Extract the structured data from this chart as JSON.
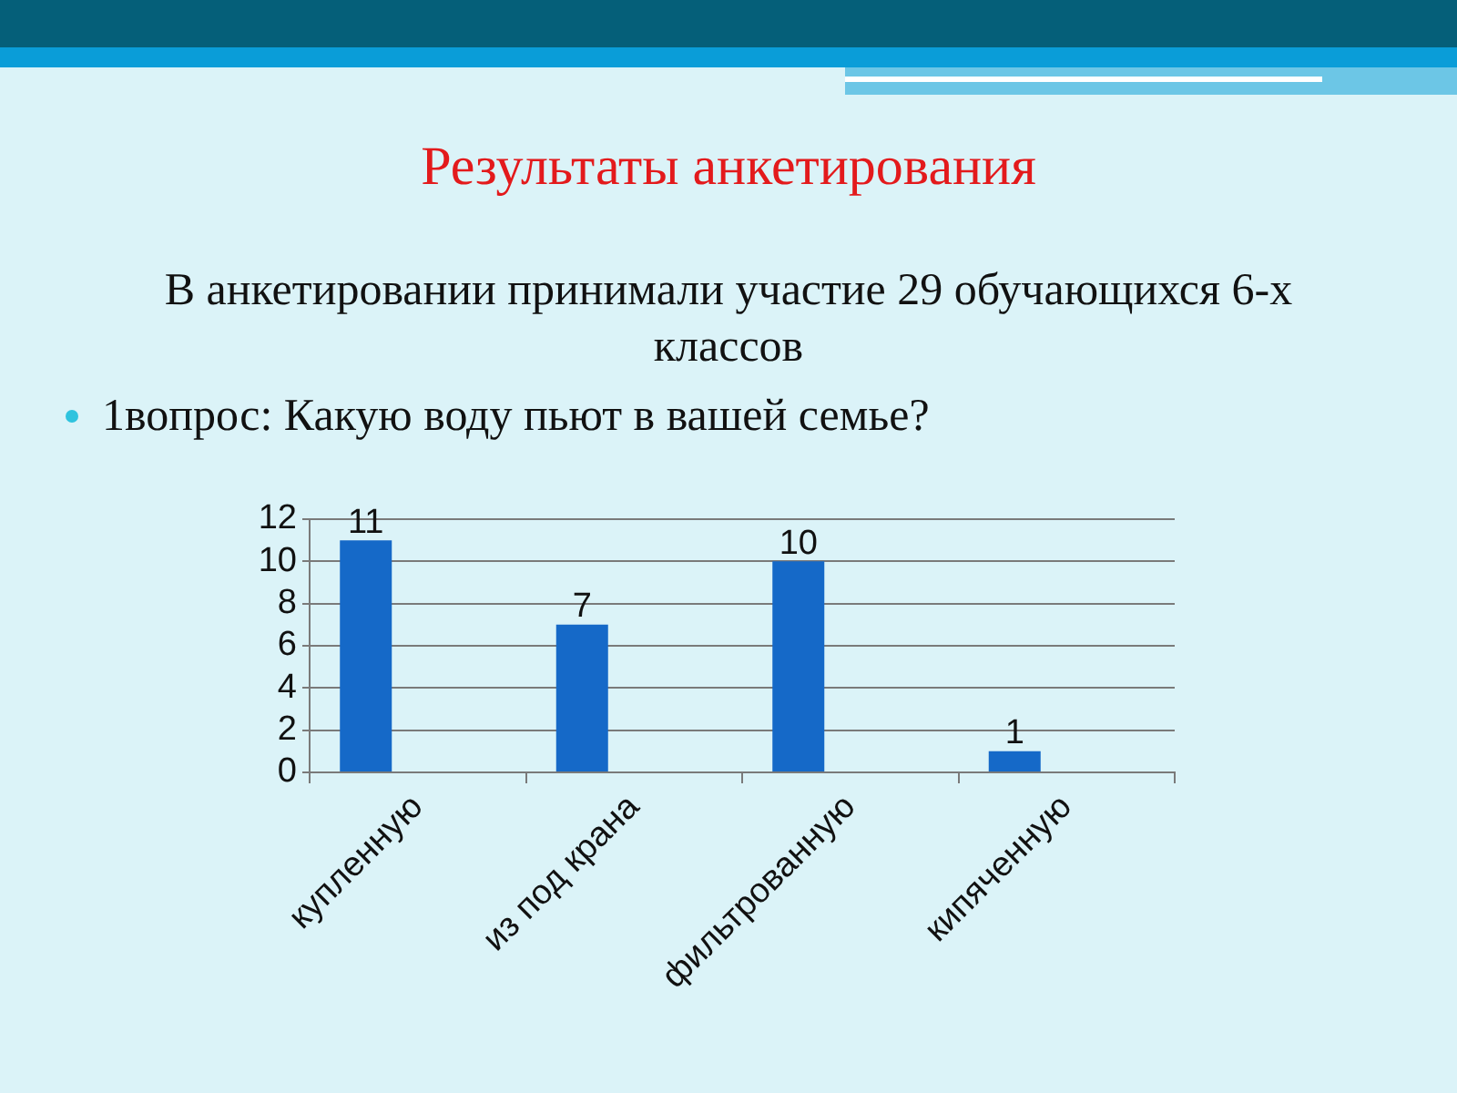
{
  "chart_data": {
    "type": "bar",
    "title": "Результаты анкетирования",
    "subtitle": "В анкетировании принимали участие 29 обучающихся 6-х классов",
    "annotations": [
      "1вопрос: Какую воду пьют в вашей семье?"
    ],
    "categories": [
      "купленную",
      "из под крана",
      "фильтрованную",
      "кипяченную"
    ],
    "values": [
      11,
      7,
      10,
      1
    ],
    "color": "#1569c8",
    "ylim": [
      0,
      12
    ],
    "yticks": [
      0,
      2,
      4,
      6,
      8,
      10,
      12
    ],
    "grid": "y",
    "data_labels": true
  }
}
